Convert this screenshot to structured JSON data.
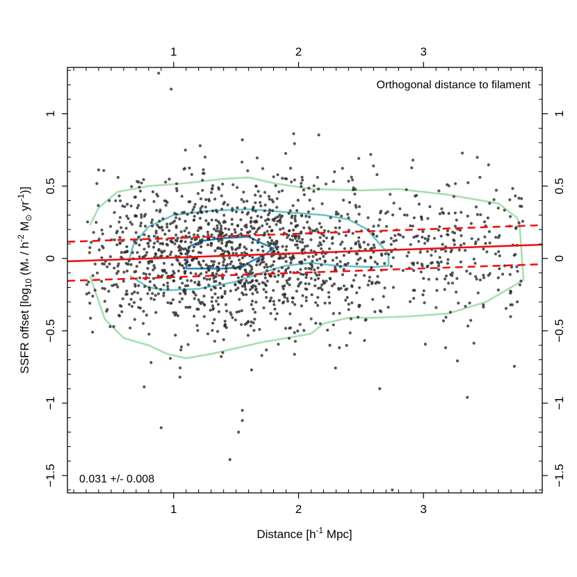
{
  "chart_data": {
    "type": "scatter",
    "title": "",
    "annotation_top_right": "Orthogonal distance to filament",
    "annotation_bottom_left": "0.031 +/- 0.008",
    "xlabel": "Distance [h",
    "xlabel_sup": "-1",
    "xlabel_tail": " Mpc]",
    "ylabel_parts": {
      "a": "SSFR offset [log",
      "sub10": "10",
      "b": " (M",
      "subStar": "*",
      "c": " / h",
      "sup2": "-2",
      "d": " M",
      "sun": "⊙",
      "e": " yr",
      "sup1": "-1",
      "f": ")]"
    },
    "xlim": [
      0.15,
      3.95
    ],
    "ylim": [
      -1.62,
      1.32
    ],
    "x_ticks": [
      1,
      2,
      3
    ],
    "x_tick_labels": [
      "1",
      "2",
      "3"
    ],
    "top_tick_labels": [
      "1",
      "2",
      "3"
    ],
    "y_ticks": [
      -1.5,
      -1,
      -0.5,
      0,
      0.5,
      1
    ],
    "y_tick_labels": [
      "−1.5",
      "−1",
      "−0.5",
      "0",
      "0.5",
      "1"
    ],
    "colors": {
      "points": "#2e2e2e",
      "fit_line": "#ee1111",
      "contour_outer": "#a8dfb0",
      "contour_mid": "#6cc3c5",
      "contour_inner": "#2a86bf"
    },
    "fit": {
      "slope": 0.031,
      "slope_err": 0.008,
      "line": [
        [
          0.15,
          -0.02
        ],
        [
          3.95,
          0.095
        ]
      ],
      "upper_dashed": [
        [
          0.15,
          0.115
        ],
        [
          3.95,
          0.23
        ]
      ],
      "lower_dashed": [
        [
          0.15,
          -0.155
        ],
        [
          3.95,
          -0.04
        ]
      ]
    },
    "contours": {
      "outer": [
        [
          0.33,
          0.23
        ],
        [
          0.4,
          0.35
        ],
        [
          0.55,
          0.46
        ],
        [
          0.8,
          0.5
        ],
        [
          1.1,
          0.52
        ],
        [
          1.4,
          0.55
        ],
        [
          1.6,
          0.56
        ],
        [
          1.8,
          0.52
        ],
        [
          2.1,
          0.48
        ],
        [
          2.5,
          0.47
        ],
        [
          2.8,
          0.48
        ],
        [
          3.2,
          0.44
        ],
        [
          3.6,
          0.38
        ],
        [
          3.75,
          0.28
        ],
        [
          3.77,
          0.22
        ],
        [
          3.8,
          -0.15
        ],
        [
          3.7,
          -0.2
        ],
        [
          3.5,
          -0.3
        ],
        [
          3.2,
          -0.38
        ],
        [
          2.9,
          -0.4
        ],
        [
          2.6,
          -0.41
        ],
        [
          2.4,
          -0.41
        ],
        [
          2.2,
          -0.45
        ],
        [
          2.1,
          -0.52
        ],
        [
          1.9,
          -0.55
        ],
        [
          1.7,
          -0.58
        ],
        [
          1.5,
          -0.62
        ],
        [
          1.3,
          -0.66
        ],
        [
          1.1,
          -0.69
        ],
        [
          0.95,
          -0.66
        ],
        [
          0.8,
          -0.6
        ],
        [
          0.6,
          -0.55
        ],
        [
          0.45,
          -0.42
        ],
        [
          0.33,
          -0.12
        ]
      ],
      "mid": [
        [
          0.63,
          -0.05
        ],
        [
          0.68,
          0.1
        ],
        [
          0.8,
          0.22
        ],
        [
          1.0,
          0.3
        ],
        [
          1.3,
          0.33
        ],
        [
          1.6,
          0.34
        ],
        [
          1.9,
          0.32
        ],
        [
          2.2,
          0.3
        ],
        [
          2.4,
          0.27
        ],
        [
          2.55,
          0.2
        ],
        [
          2.65,
          0.1
        ],
        [
          2.72,
          0.03
        ],
        [
          2.72,
          -0.05
        ],
        [
          2.6,
          -0.06
        ],
        [
          2.3,
          -0.05
        ],
        [
          2.1,
          -0.03
        ],
        [
          1.9,
          -0.05
        ],
        [
          1.7,
          -0.1
        ],
        [
          1.5,
          -0.16
        ],
        [
          1.2,
          -0.21
        ],
        [
          0.95,
          -0.22
        ],
        [
          0.8,
          -0.2
        ],
        [
          0.65,
          -0.12
        ]
      ],
      "inner": [
        [
          1.1,
          -0.07
        ],
        [
          1.12,
          0.08
        ],
        [
          1.22,
          0.12
        ],
        [
          1.4,
          0.14
        ],
        [
          1.6,
          0.15
        ],
        [
          1.72,
          0.1
        ],
        [
          1.8,
          0.07
        ],
        [
          1.72,
          0.02
        ],
        [
          1.62,
          -0.02
        ],
        [
          1.55,
          -0.06
        ],
        [
          1.4,
          -0.07
        ],
        [
          1.2,
          -0.07
        ],
        [
          1.1,
          -0.07
        ]
      ]
    },
    "scatter_spec": {
      "n": 1600,
      "seed": 20240613,
      "x_range": [
        0.3,
        3.8
      ],
      "y_center_by_x": "follows fit line",
      "y_sd": 0.26,
      "notable_points": [
        [
          0.88,
          1.28
        ],
        [
          0.98,
          1.17
        ],
        [
          1.55,
          0.82
        ],
        [
          1.05,
          -0.82
        ],
        [
          1.55,
          -1.05
        ],
        [
          1.55,
          -1.12
        ],
        [
          1.52,
          -1.2
        ],
        [
          1.45,
          -1.39
        ],
        [
          0.9,
          -1.17
        ],
        [
          2.75,
          -1.6
        ],
        [
          3.35,
          -0.96
        ],
        [
          2.65,
          -0.9
        ],
        [
          3.75,
          -0.3
        ]
      ]
    }
  }
}
